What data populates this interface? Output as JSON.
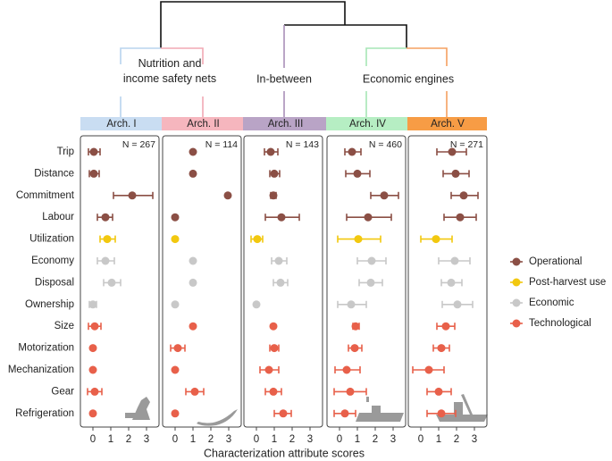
{
  "chart_data": {
    "type": "dot",
    "xlabel": "Characterization attribute scores",
    "xlim": [
      -0.7,
      3.7
    ],
    "xticks": [
      0,
      1,
      2,
      3
    ],
    "clusters": [
      {
        "lines": [
          "Nutrition and",
          "income safety nets"
        ]
      },
      {
        "lines": [
          "In-between"
        ]
      },
      {
        "lines": [
          "Economic engines"
        ]
      }
    ],
    "categories": [
      "Trip",
      "Distance",
      "Commitment",
      "Labour",
      "Utilization",
      "Economy",
      "Disposal",
      "Ownership",
      "Size",
      "Motorization",
      "Mechanization",
      "Gear",
      "Refrigeration"
    ],
    "groups": [
      {
        "name": "Operational",
        "color": "#8b4f45"
      },
      {
        "name": "Post-harvest use",
        "color": "#f2c80f"
      },
      {
        "name": "Economic",
        "color": "#c8c8c8"
      },
      {
        "name": "Technological",
        "color": "#e8604a"
      }
    ],
    "category_group": [
      0,
      0,
      0,
      0,
      1,
      2,
      2,
      2,
      3,
      3,
      3,
      3,
      3
    ],
    "panels": [
      {
        "name": "Arch. I",
        "header_color": "#c9ddf2",
        "n_label": "N = 267",
        "values": [
          0.05,
          0.05,
          2.2,
          0.7,
          0.8,
          0.7,
          1.05,
          0,
          0.1,
          0,
          0,
          0.1,
          0
        ],
        "low": [
          -0.25,
          -0.2,
          1.15,
          0.25,
          0.4,
          0.25,
          0.6,
          -0.2,
          -0.25,
          0,
          0,
          -0.3,
          0
        ],
        "high": [
          0.4,
          0.35,
          3.35,
          1.1,
          1.25,
          1.2,
          1.55,
          0.2,
          0.45,
          0,
          0,
          0.5,
          0
        ]
      },
      {
        "name": "Arch. II",
        "header_color": "#f6b6be",
        "n_label": "N = 114",
        "values": [
          1,
          1,
          2.95,
          0,
          0,
          1,
          1,
          0,
          1,
          0.15,
          0,
          1.1,
          0
        ],
        "low": [
          1,
          1,
          2.95,
          0,
          0,
          1,
          1,
          0,
          1,
          -0.25,
          0,
          0.6,
          0
        ],
        "high": [
          1,
          1,
          2.95,
          0,
          0,
          1,
          1,
          0,
          1,
          0.55,
          0,
          1.6,
          0
        ]
      },
      {
        "name": "Arch. III",
        "header_color": "#b9a4c6",
        "n_label": "N = 143",
        "values": [
          0.8,
          1,
          0.95,
          1.4,
          0.05,
          1.25,
          1.35,
          0,
          0.95,
          1,
          0.7,
          0.95,
          1.5
        ],
        "low": [
          0.45,
          0.75,
          0.8,
          0.5,
          -0.3,
          0.85,
          0.95,
          0,
          0.95,
          0.75,
          0.2,
          0.5,
          1
        ],
        "high": [
          1.2,
          1.3,
          1.1,
          2.4,
          0.35,
          1.7,
          1.75,
          0,
          0.95,
          1.25,
          1.25,
          1.4,
          1.95
        ]
      },
      {
        "name": "Arch. IV",
        "header_color": "#b6eec3",
        "n_label": "N = 460",
        "values": [
          0.7,
          1,
          2.5,
          1.6,
          1.05,
          1.8,
          1.75,
          0.65,
          0.9,
          0.85,
          0.4,
          0.6,
          0.3
        ],
        "low": [
          0.3,
          0.35,
          1.75,
          0.4,
          -0.1,
          1,
          1.1,
          -0.1,
          0.75,
          0.5,
          -0.25,
          -0.3,
          -0.3
        ],
        "high": [
          1.2,
          1.7,
          3.3,
          2.9,
          2.3,
          2.6,
          2.4,
          1.5,
          1.1,
          1.25,
          1.15,
          1.5,
          0.9
        ]
      },
      {
        "name": "Arch. V",
        "header_color": "#f79c45",
        "n_label": "N = 271",
        "values": [
          1.75,
          1.95,
          2.4,
          2.2,
          0.85,
          1.9,
          1.7,
          2.05,
          1.4,
          1.15,
          0.45,
          1,
          1.15
        ],
        "low": [
          0.9,
          1.25,
          1.7,
          1.3,
          0,
          1,
          1.15,
          1.2,
          0.9,
          0.7,
          -0.45,
          0.35,
          0.35
        ],
        "high": [
          2.55,
          2.7,
          3.2,
          3.1,
          1.75,
          2.75,
          2.3,
          2.9,
          1.9,
          1.6,
          1.3,
          1.7,
          1.95
        ]
      }
    ]
  }
}
